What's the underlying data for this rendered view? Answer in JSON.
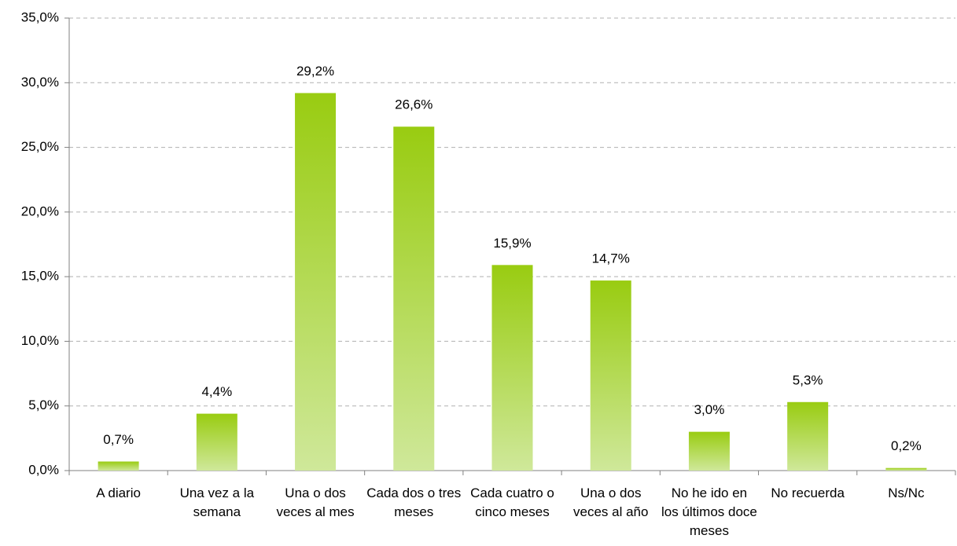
{
  "chart_data": {
    "type": "bar",
    "categories": [
      "A diario",
      "Una vez a la semana",
      "Una o dos veces al mes",
      "Cada dos o tres meses",
      "Cada cuatro o cinco meses",
      "Una o dos veces al año",
      "No he ido en los últimos doce meses",
      "No recuerda",
      "Ns/Nc"
    ],
    "values": [
      0.7,
      4.4,
      29.2,
      26.6,
      15.9,
      14.7,
      3.0,
      5.3,
      0.2
    ],
    "value_labels": [
      "0,7%",
      "4,4%",
      "29,2%",
      "26,6%",
      "15,9%",
      "14,7%",
      "3,0%",
      "5,3%",
      "0,2%"
    ],
    "color": "#99cc11",
    "ylim": [
      0,
      35
    ],
    "yticks": [
      {
        "value": 0,
        "label": "0,0%"
      },
      {
        "value": 5,
        "label": "5,0%"
      },
      {
        "value": 10,
        "label": "10,0%"
      },
      {
        "value": 15,
        "label": "15,0%"
      },
      {
        "value": 20,
        "label": "20,0%"
      },
      {
        "value": 25,
        "label": "25,0%"
      },
      {
        "value": 30,
        "label": "30,0%"
      },
      {
        "value": 35,
        "label": "35,0%"
      }
    ],
    "grid": true
  }
}
